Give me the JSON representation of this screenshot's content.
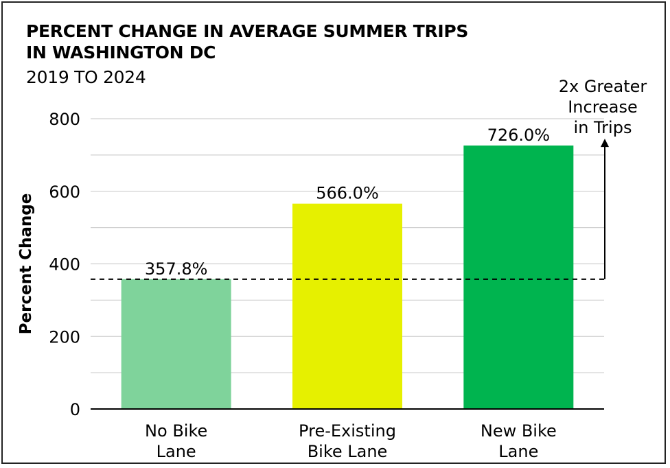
{
  "chart_data": {
    "type": "bar",
    "title_lines": [
      "PERCENT CHANGE IN AVERAGE SUMMER TRIPS",
      "IN WASHINGTON DC"
    ],
    "subtitle": "2019 TO 2024",
    "xlabel": "",
    "ylabel": "Percent Change",
    "ylim": [
      0,
      800
    ],
    "yticks": [
      0,
      200,
      400,
      600,
      800
    ],
    "grid": true,
    "categories": [
      {
        "lines": [
          "No Bike",
          "Lane"
        ]
      },
      {
        "lines": [
          "Pre-Existing",
          "Bike Lane"
        ]
      },
      {
        "lines": [
          "New Bike",
          "Lane"
        ]
      }
    ],
    "values": [
      357.8,
      566.0,
      726.0
    ],
    "data_labels": [
      "357.8%",
      "566.0%",
      "726.0%"
    ],
    "colors": [
      "#7fd39b",
      "#e6f000",
      "#00b44f"
    ],
    "reference_line": {
      "value": 357.8,
      "style": "dashed"
    },
    "annotation": {
      "lines": [
        "2x Greater",
        "Increase",
        "in Trips"
      ],
      "arrow_from": 357.8,
      "arrow_to": 726.0
    }
  }
}
